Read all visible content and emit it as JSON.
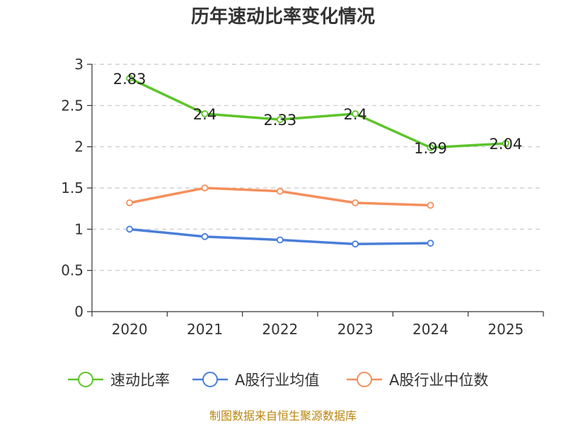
{
  "chart_data": {
    "type": "line",
    "title": "历年速动比率变化情况",
    "categories": [
      "2020",
      "2021",
      "2022",
      "2023",
      "2024",
      "2025"
    ],
    "y_ticks": [
      "0",
      "0.5",
      "1",
      "1.5",
      "2",
      "2.5",
      "3"
    ],
    "ylim": [
      0,
      3
    ],
    "grid": true,
    "legend_position": "bottom",
    "series": [
      {
        "name": "速动比率",
        "color": "#5cc42a",
        "values": [
          2.83,
          2.4,
          2.33,
          2.4,
          1.99,
          2.04
        ],
        "labels": [
          "2.83",
          "2.4",
          "2.33",
          "2.4",
          "1.99",
          "2.04"
        ]
      },
      {
        "name": "A股行业均值",
        "color": "#4a7fd9",
        "values": [
          1.0,
          0.91,
          0.87,
          0.82,
          0.83,
          null
        ]
      },
      {
        "name": "A股行业中位数",
        "color": "#f58f5c",
        "values": [
          1.32,
          1.5,
          1.46,
          1.32,
          1.29,
          null
        ]
      }
    ],
    "source": "制图数据来自恒生聚源数据库"
  }
}
